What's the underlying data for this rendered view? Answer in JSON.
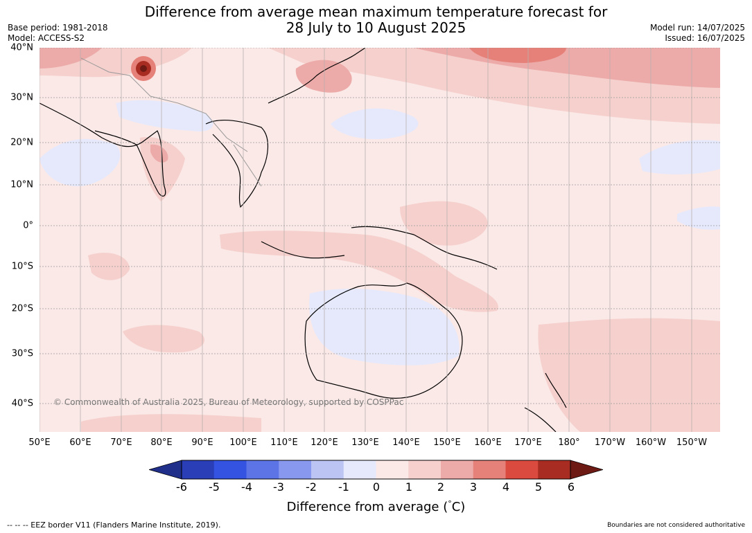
{
  "header": {
    "title_line1": "Difference from average mean maximum temperature forecast for",
    "title_line2": "28 July to 10 August 2025",
    "base_period": "Base period: 1981-2018",
    "model": "Model: ACCESS-S2",
    "model_run": "Model run: 14/07/2025",
    "issued": "Issued: 16/07/2025"
  },
  "map": {
    "lat_labels": [
      "40°N",
      "30°N",
      "20°N",
      "10°N",
      "0°",
      "10°S",
      "20°S",
      "30°S",
      "40°S"
    ],
    "lon_labels": [
      "50°E",
      "60°E",
      "70°E",
      "80°E",
      "90°E",
      "100°E",
      "110°E",
      "120°E",
      "130°E",
      "140°E",
      "150°E",
      "160°E",
      "170°E",
      "180°",
      "170°W",
      "160°W",
      "150°W"
    ],
    "copyright": "© Commonwealth of Australia 2025, Bureau of Meteorology, supported by COSPPac",
    "background_color": "#fbe9e7"
  },
  "colorbar": {
    "ticks": [
      "-6",
      "-5",
      "-4",
      "-3",
      "-2",
      "-1",
      "0",
      "1",
      "2",
      "3",
      "4",
      "5",
      "6"
    ],
    "colors": [
      "#1f2f8a",
      "#2a3eb8",
      "#3353e0",
      "#5d74e6",
      "#8898ee",
      "#bcc4f4",
      "#e6e9fb",
      "#fbe9e7",
      "#f5d0cd",
      "#ecaaa8",
      "#e6817a",
      "#db4a3e",
      "#a82c22",
      "#6e1a14"
    ],
    "title": "Difference from average (",
    "title_unit": "C)",
    "title_degree": "°"
  },
  "footer": {
    "eez": "--  --  -- EEZ border V11 (Flanders Marine Institute, 2019).",
    "boundaries": "Boundaries are not considered authoritative"
  }
}
